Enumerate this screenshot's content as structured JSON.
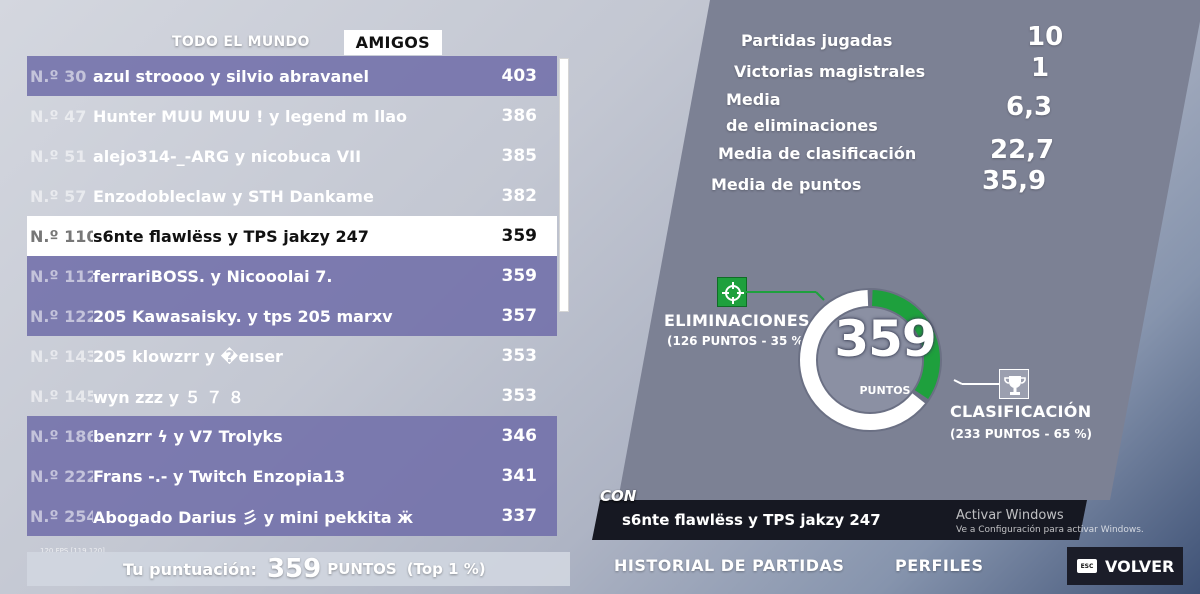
{
  "tabs": [
    {
      "label": "TODO EL MUNDO",
      "active": false
    },
    {
      "label": "AMIGOS",
      "active": true
    }
  ],
  "leaderboard": [
    {
      "rank": "N.º 30",
      "name": "azul stroooo y silvio abravanel",
      "points": "403",
      "style": "highlight"
    },
    {
      "rank": "N.º 47",
      "name": "Hunter MUU MUU ! y legend m llao",
      "points": "386",
      "style": "plain"
    },
    {
      "rank": "N.º 51",
      "name": "alejo314-_-ARG y nicobuca VII",
      "points": "385",
      "style": "plain"
    },
    {
      "rank": "N.º 57",
      "name": "Enzodobleclaw y STH Dankame",
      "points": "382",
      "style": "plain"
    },
    {
      "rank": "N.º 110",
      "name": "s6nte flawlëss y TPS jakzy 247",
      "points": "359",
      "style": "self"
    },
    {
      "rank": "N.º 112",
      "name": "ferrariBOSS. y Nicooolai 7.",
      "points": "359",
      "style": "highlight"
    },
    {
      "rank": "N.º 122",
      "name": "205 Kawasaisky. y tps 205 marxv",
      "points": "357",
      "style": "highlight"
    },
    {
      "rank": "N.º 143",
      "name": "205 klowzrr y �eıser",
      "points": "353",
      "style": "plain"
    },
    {
      "rank": "N.º 145",
      "name": "wyn zzz y ５ ７ ８",
      "points": "353",
      "style": "plain"
    },
    {
      "rank": "N.º 186",
      "name": "benzrr ϟ y V7 Trolyks",
      "points": "346",
      "style": "highlight"
    },
    {
      "rank": "N.º 222",
      "name": "Frans -.- y Twitch Enzopia13",
      "points": "341",
      "style": "highlight"
    },
    {
      "rank": "N.º 254",
      "name": "Abogado Darius 彡 y mini pekkita ӝ",
      "points": "337",
      "style": "highlight"
    }
  ],
  "fps_overlay": "120 FPS [119 120]",
  "score_bar": {
    "label": "Tu puntuación:",
    "value": "359",
    "unit": "PUNTOS",
    "top": "(Top 1 %)"
  },
  "stats": {
    "matches_label": "Partidas jugadas",
    "matches_value": "10",
    "wins_label": "Victorias magistrales",
    "wins_value": "1",
    "elims_avg_label_1": "Media",
    "elims_avg_label_2": "de eliminaciones",
    "elims_avg_value": "6,3",
    "place_avg_label": "Media de clasificación",
    "place_avg_value": "22,7",
    "points_avg_label": "Media de puntos",
    "points_avg_value": "35,9"
  },
  "breakdown": {
    "total": "359",
    "total_label": "PUNTOS",
    "elims_title": "ELIMINACIONES",
    "elims_detail": "(126 PUNTOS - 35 %)",
    "elims_fraction": 0.35,
    "place_title": "CLASIFICACIÓN",
    "place_detail": "(233 PUNTOS - 65 %)",
    "place_fraction": 0.65,
    "colors": {
      "elims": "#1ea03d",
      "place": "#ffffff",
      "track": "#6b7084"
    }
  },
  "team": {
    "prefix": "CON",
    "names": "s6nte flawlëss y TPS jakzy 247"
  },
  "windows_notice": {
    "line1": "Activar Windows",
    "line2": "Ve a Configuración para activar Windows."
  },
  "nav": {
    "history": "HISTORIAL DE PARTIDAS",
    "profiles": "PERFILES",
    "back_key": "ESC",
    "back": "VOLVER"
  },
  "icons": {
    "elims": "crosshair-icon",
    "place": "trophy-icon"
  }
}
